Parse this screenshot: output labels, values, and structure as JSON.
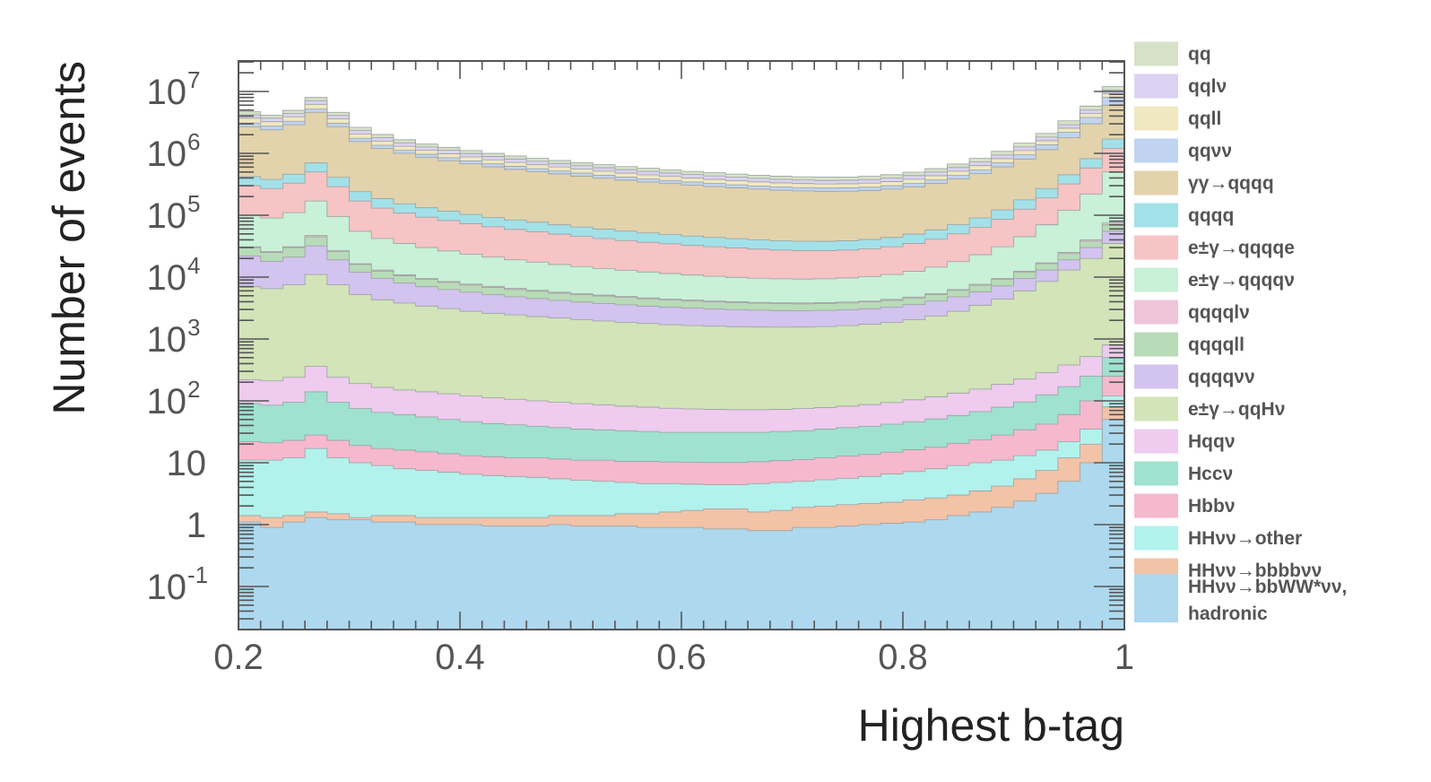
{
  "chart_data": {
    "type": "area",
    "stacked": true,
    "xlabel": "Highest b-tag",
    "ylabel": "Number of events",
    "xlim": [
      0.2,
      1.0
    ],
    "ylim": [
      0.02,
      20000000
    ],
    "yscale": "log",
    "grid": false,
    "legend_position": "right",
    "x_ticks": [
      {
        "value": 0.2,
        "label": "0.2"
      },
      {
        "value": 0.4,
        "label": "0.4"
      },
      {
        "value": 0.6,
        "label": "0.6"
      },
      {
        "value": 0.8,
        "label": "0.8"
      },
      {
        "value": 1.0,
        "label": "1"
      }
    ],
    "y_ticks": [
      {
        "value": 0.1,
        "base": "10",
        "exp": "-1"
      },
      {
        "value": 1,
        "base": "1",
        "exp": ""
      },
      {
        "value": 10,
        "base": "10",
        "exp": ""
      },
      {
        "value": 100,
        "base": "10",
        "exp": "2"
      },
      {
        "value": 1000,
        "base": "10",
        "exp": "3"
      },
      {
        "value": 10000,
        "base": "10",
        "exp": "4"
      },
      {
        "value": 100000,
        "base": "10",
        "exp": "5"
      },
      {
        "value": 1000000,
        "base": "10",
        "exp": "6"
      },
      {
        "value": 10000000,
        "base": "10",
        "exp": "7"
      }
    ],
    "bins": {
      "start": 0.2,
      "width": 0.02,
      "count": 40
    },
    "note": "series listed from bottom of stack to top; values[i] is the cumulative stack top (events) in bin i",
    "series": [
      {
        "name": "HHνν→bbWW*νν, hadronic",
        "color": "#add8ee",
        "values": [
          1.1,
          0.9,
          1.1,
          1.3,
          1.2,
          1.2,
          1.1,
          1.1,
          1.0,
          1.0,
          1.0,
          0.95,
          0.95,
          0.95,
          1.0,
          0.95,
          0.95,
          0.95,
          0.9,
          0.9,
          0.9,
          0.85,
          0.85,
          0.8,
          0.8,
          0.9,
          0.9,
          0.95,
          1.0,
          1.05,
          1.1,
          1.2,
          1.4,
          1.6,
          1.9,
          2.4,
          3.2,
          5,
          10,
          50
        ]
      },
      {
        "name": "HHνν→bbbbνν",
        "color": "#f3c3a8",
        "values": [
          1.4,
          1.3,
          1.4,
          1.6,
          1.5,
          1.3,
          1.4,
          1.4,
          1.3,
          1.3,
          1.3,
          1.3,
          1.3,
          1.3,
          1.4,
          1.4,
          1.4,
          1.5,
          1.5,
          1.6,
          1.7,
          1.8,
          1.8,
          1.6,
          1.7,
          1.9,
          2.0,
          2.1,
          2.2,
          2.3,
          2.5,
          2.7,
          3.0,
          3.5,
          4.2,
          5.5,
          7.5,
          12,
          20,
          80
        ]
      },
      {
        "name": "HHνν→other",
        "color": "#b2f2ec",
        "values": [
          11,
          11,
          12,
          17,
          12,
          10,
          9,
          8,
          7.5,
          7,
          6.5,
          6.2,
          6,
          5.8,
          5.5,
          5.2,
          5,
          4.8,
          4.6,
          4.6,
          4.5,
          4.4,
          4.4,
          4.6,
          4.8,
          5,
          5.3,
          5.6,
          6,
          6.6,
          7.2,
          8,
          9,
          10,
          11,
          13,
          16,
          22,
          35,
          120
        ]
      },
      {
        "name": "Hbbν",
        "color": "#f6b8cd",
        "values": [
          22,
          21,
          23,
          28,
          23,
          19,
          17,
          16,
          15,
          14,
          13,
          12.5,
          12,
          12,
          11.5,
          11,
          11,
          10.5,
          10.5,
          10.3,
          10.2,
          10.1,
          10.1,
          10.4,
          10.8,
          11.3,
          12,
          12.8,
          13.6,
          14.8,
          16.2,
          18,
          20.5,
          23.5,
          28,
          34,
          42,
          60,
          100,
          250
        ]
      },
      {
        "name": "Hccν",
        "color": "#9fe2d0",
        "values": [
          90,
          85,
          95,
          140,
          95,
          75,
          65,
          60,
          55,
          50,
          46,
          43,
          41,
          39,
          37,
          35,
          34,
          33,
          32,
          31,
          31,
          31,
          31,
          31,
          32,
          33,
          35,
          37,
          39,
          42,
          46,
          51,
          58,
          67,
          79,
          96,
          125,
          170,
          250,
          500
        ]
      },
      {
        "name": "Hqqν",
        "color": "#eecbef",
        "values": [
          220,
          210,
          240,
          360,
          240,
          190,
          165,
          150,
          140,
          130,
          120,
          112,
          106,
          100,
          95,
          90,
          86,
          82,
          79,
          76,
          74,
          73,
          72,
          72,
          73,
          75,
          78,
          82,
          87,
          94,
          104,
          116,
          133,
          155,
          185,
          225,
          285,
          380,
          520,
          800
        ]
      },
      {
        "name": "e±γ→qqHν",
        "color": "#d2e4b8",
        "values": [
          7000,
          6500,
          7500,
          11000,
          7500,
          5200,
          4300,
          3800,
          3400,
          3100,
          2800,
          2600,
          2450,
          2300,
          2180,
          2060,
          1950,
          1860,
          1780,
          1700,
          1650,
          1610,
          1580,
          1560,
          1550,
          1560,
          1590,
          1650,
          1730,
          1860,
          2050,
          2350,
          2800,
          3500,
          4400,
          6000,
          8500,
          13000,
          20000,
          35000
        ]
      },
      {
        "name": "qqqqνν",
        "color": "#d3c3ef",
        "values": [
          22000,
          18000,
          21000,
          32000,
          19000,
          12000,
          9500,
          8000,
          7000,
          6300,
          5700,
          5200,
          4800,
          4500,
          4200,
          3950,
          3750,
          3570,
          3400,
          3250,
          3150,
          3060,
          2980,
          2920,
          2880,
          2870,
          2900,
          2970,
          3080,
          3280,
          3600,
          4100,
          4800,
          5800,
          7200,
          9500,
          13000,
          19000,
          30000,
          55000
        ]
      },
      {
        "name": "qqqqll",
        "color": "#b8dbb8",
        "values": [
          30000,
          25000,
          30000,
          45000,
          26000,
          16000,
          12500,
          10500,
          9200,
          8200,
          7400,
          6800,
          6300,
          5900,
          5500,
          5200,
          4950,
          4700,
          4450,
          4250,
          4100,
          3970,
          3860,
          3780,
          3720,
          3700,
          3740,
          3820,
          3960,
          4200,
          4600,
          5200,
          6100,
          7400,
          9200,
          12000,
          16500,
          24000,
          38000,
          70000
        ]
      },
      {
        "name": "qqqqlν",
        "color": "#efc5da",
        "values": [
          31000,
          26000,
          31000,
          47000,
          27000,
          16500,
          13000,
          10900,
          9500,
          8500,
          7700,
          7100,
          6550,
          6100,
          5700,
          5400,
          5120,
          4860,
          4610,
          4400,
          4240,
          4110,
          4000,
          3910,
          3850,
          3830,
          3870,
          3960,
          4100,
          4350,
          4760,
          5380,
          6300,
          7650,
          9500,
          12400,
          17000,
          25000,
          40000,
          75000
        ]
      },
      {
        "name": "e±γ→qqqqν",
        "color": "#c8f1d8",
        "values": [
          100000,
          90000,
          110000,
          170000,
          95000,
          55000,
          42000,
          35000,
          30000,
          26500,
          23500,
          21000,
          19000,
          17500,
          16000,
          14800,
          13800,
          12900,
          12100,
          11400,
          10800,
          10300,
          9900,
          9600,
          9400,
          9300,
          9400,
          9700,
          10200,
          11000,
          12400,
          14500,
          17800,
          23000,
          31000,
          45000,
          70000,
          120000,
          220000,
          500000
        ]
      },
      {
        "name": "e±γ→qqqqe",
        "color": "#f6c4c4",
        "values": [
          300000,
          270000,
          330000,
          500000,
          290000,
          170000,
          130000,
          108000,
          93000,
          82000,
          73000,
          65000,
          59000,
          54000,
          49500,
          45500,
          42000,
          39000,
          36500,
          34500,
          32500,
          31000,
          29500,
          28300,
          27400,
          26800,
          26800,
          27400,
          28700,
          31000,
          35000,
          41000,
          50000,
          64000,
          86000,
          125000,
          190000,
          320000,
          580000,
          1200000
        ]
      },
      {
        "name": "qqqq",
        "color": "#a3e1e9",
        "values": [
          420000,
          380000,
          460000,
          700000,
          410000,
          240000,
          185000,
          153000,
          132000,
          116000,
          103000,
          92000,
          84000,
          77000,
          70000,
          64500,
          59500,
          55300,
          51700,
          48800,
          46000,
          43800,
          41800,
          40100,
          38800,
          38000,
          37900,
          38700,
          40500,
          43700,
          49500,
          58000,
          70500,
          90500,
          122000,
          177000,
          270000,
          450000,
          820000,
          1700000
        ]
      },
      {
        "name": "γγ→qqqq",
        "color": "#e3d3ac",
        "values": [
          2700000,
          2400000,
          2900000,
          4600000,
          2700000,
          1550000,
          1200000,
          1000000,
          860000,
          760000,
          675000,
          605000,
          550000,
          505000,
          465000,
          428000,
          396000,
          368000,
          344000,
          324000,
          306000,
          290000,
          276000,
          264000,
          254000,
          247000,
          243000,
          244000,
          250000,
          264000,
          288000,
          327000,
          385000,
          470000,
          605000,
          810000,
          1150000,
          1800000,
          3000000,
          6000000
        ]
      },
      {
        "name": "qqνν",
        "color": "#c0d4f2",
        "values": [
          3100000,
          2750000,
          3300000,
          5200000,
          3050000,
          1750000,
          1350000,
          1120000,
          965000,
          850000,
          755000,
          677000,
          615000,
          565000,
          520000,
          479000,
          443000,
          412000,
          386000,
          364000,
          344000,
          326000,
          310000,
          297000,
          286000,
          279000,
          275000,
          276000,
          283000,
          299000,
          327000,
          372000,
          440000,
          540000,
          700000,
          950000,
          1370000,
          2200000,
          3800000,
          8000000
        ]
      },
      {
        "name": "qqll",
        "color": "#f0e8c0",
        "values": [
          3700000,
          3250000,
          3900000,
          6200000,
          3600000,
          2050000,
          1580000,
          1300000,
          1120000,
          985000,
          875000,
          785000,
          713000,
          655000,
          603000,
          556000,
          515000,
          479000,
          449000,
          423000,
          400000,
          379000,
          361000,
          346000,
          333000,
          325000,
          320000,
          322000,
          330000,
          349000,
          382000,
          435000,
          515000,
          633000,
          820000,
          1110000,
          1600000,
          2550000,
          4400000,
          9200000
        ]
      },
      {
        "name": "qqlν",
        "color": "#dcd2f2",
        "values": [
          4200000,
          3700000,
          4400000,
          7100000,
          4100000,
          2340000,
          1800000,
          1480000,
          1270000,
          1120000,
          993000,
          892000,
          810000,
          744000,
          685000,
          632000,
          585000,
          545000,
          511000,
          481000,
          455000,
          432000,
          411000,
          394000,
          380000,
          371000,
          365000,
          367000,
          377000,
          399000,
          437000,
          498000,
          590000,
          725000,
          940000,
          1270000,
          1830000,
          2900000,
          5000000,
          10500000
        ]
      },
      {
        "name": "qq",
        "color": "#d6e2c8",
        "values": [
          4700000,
          4150000,
          4950000,
          8000000,
          4600000,
          2630000,
          2020000,
          1660000,
          1420000,
          1250000,
          1110000,
          998000,
          906000,
          832000,
          767000,
          708000,
          656000,
          611000,
          573000,
          540000,
          511000,
          485000,
          462000,
          443000,
          428000,
          418000,
          412000,
          415000,
          427000,
          452000,
          496000,
          566000,
          672000,
          828000,
          1075000,
          1460000,
          2100000,
          3350000,
          5800000,
          12000000
        ]
      }
    ]
  },
  "legend": {
    "items": [
      {
        "label": "qq",
        "color": "#d6e2c8"
      },
      {
        "label": "qqlν",
        "color": "#dcd2f2"
      },
      {
        "label": "qqll",
        "color": "#f0e8c0"
      },
      {
        "label": "qqνν",
        "color": "#c0d4f2"
      },
      {
        "label": "γγ→qqqq",
        "color": "#e3d3ac"
      },
      {
        "label": "qqqq",
        "color": "#a3e1e9"
      },
      {
        "label": "e±γ→qqqqe",
        "color": "#f6c4c4"
      },
      {
        "label": "e±γ→qqqqν",
        "color": "#c8f1d8"
      },
      {
        "label": "qqqqlν",
        "color": "#efc5da"
      },
      {
        "label": "qqqqll",
        "color": "#b8dbb8"
      },
      {
        "label": "qqqqνν",
        "color": "#d3c3ef"
      },
      {
        "label": "e±γ→qqHν",
        "color": "#d2e4b8"
      },
      {
        "label": "Hqqν",
        "color": "#eecbef"
      },
      {
        "label": "Hccν",
        "color": "#9fe2d0"
      },
      {
        "label": "Hbbν",
        "color": "#f6b8cd"
      },
      {
        "label": "HHνν→other",
        "color": "#b2f2ec"
      },
      {
        "label": "HHνν→bbbbνν",
        "color": "#f3c3a8"
      },
      {
        "label": "HHνν→bbWW*νν,",
        "label2": "hadronic",
        "color": "#add8ee"
      }
    ]
  }
}
